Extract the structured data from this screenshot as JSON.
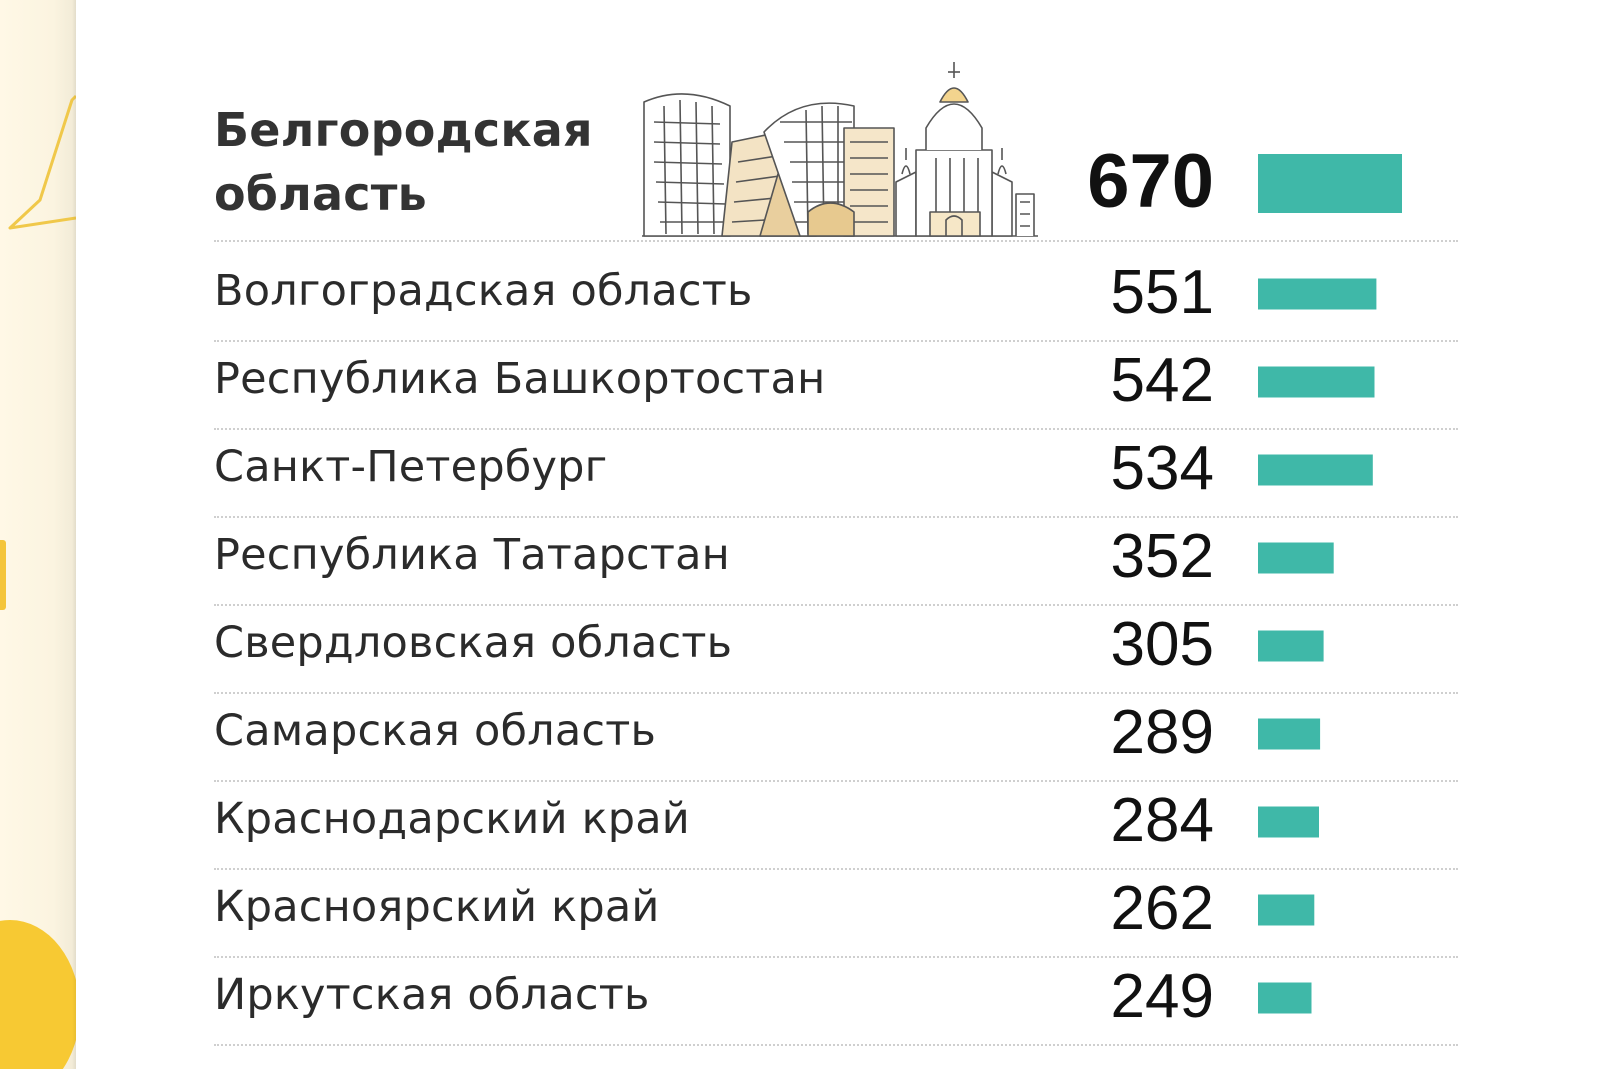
{
  "colors": {
    "bar": "#3fb8a8",
    "accent": "#f4c53a",
    "text": "#2b2b2b"
  },
  "illustration": {
    "icon": "city-buildings-cathedral-icon"
  },
  "chart_data": {
    "type": "bar",
    "orientation": "horizontal",
    "categories": [
      "Белгородская область",
      "Волгоградская область",
      "Республика Башкортостан",
      "Санкт-Петербург",
      "Республика Татарстан",
      "Свердловская область",
      "Самарская область",
      "Краснодарский край",
      "Красноярский край",
      "Иркутская область"
    ],
    "values": [
      670,
      551,
      542,
      534,
      352,
      305,
      289,
      284,
      262,
      249
    ],
    "value_labels": [
      "670",
      "551",
      "542",
      "534",
      "352",
      "305",
      "289",
      "284",
      "262",
      "249"
    ],
    "xlim": [
      0,
      670
    ],
    "highlight_index": 0,
    "grid": false,
    "legend": "none"
  }
}
